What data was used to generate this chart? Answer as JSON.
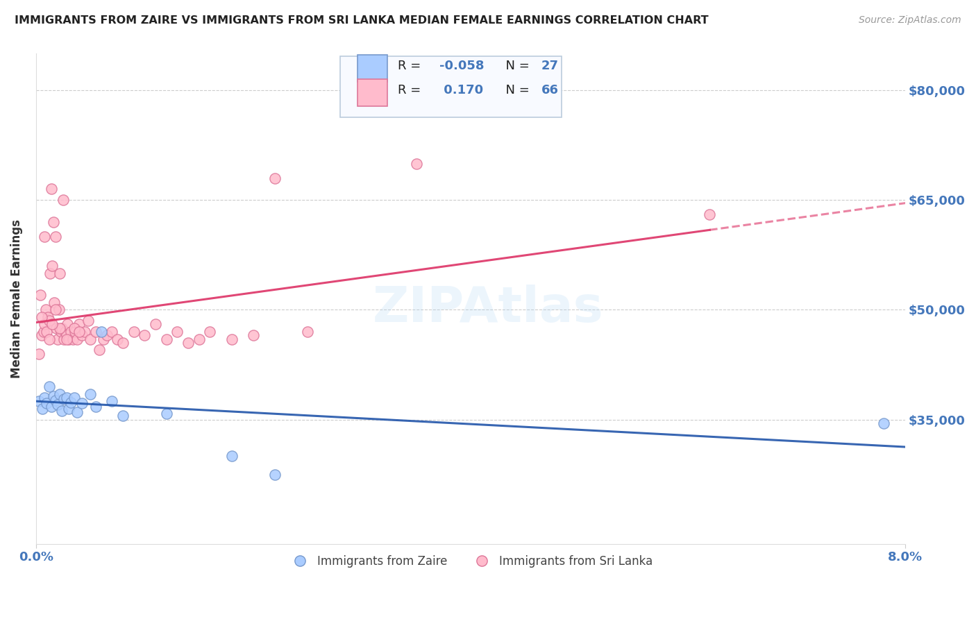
{
  "title": "IMMIGRANTS FROM ZAIRE VS IMMIGRANTS FROM SRI LANKA MEDIAN FEMALE EARNINGS CORRELATION CHART",
  "source": "Source: ZipAtlas.com",
  "ylabel": "Median Female Earnings",
  "watermark": "ZIPAtlas",
  "xmin": 0.0,
  "xmax": 8.0,
  "ymin": 18000,
  "ymax": 85000,
  "yticks": [
    35000,
    50000,
    65000,
    80000
  ],
  "ytick_labels": [
    "$35,000",
    "$50,000",
    "$65,000",
    "$80,000"
  ],
  "background_color": "#ffffff",
  "grid_color": "#cccccc",
  "title_color": "#222222",
  "source_color": "#999999",
  "ylabel_color": "#333333",
  "xtick_color": "#4477bb",
  "ytick_color": "#4477bb",
  "zaire_color": "#aaccff",
  "zaire_edge": "#7799cc",
  "srilanka_color": "#ffbbcc",
  "srilanka_edge": "#dd7799",
  "zaire_line_color": "#2255aa",
  "srilanka_line_color": "#dd3366",
  "R_zaire": -0.058,
  "N_zaire": 27,
  "R_srilanka": 0.17,
  "N_srilanka": 66,
  "legend_box_color": "#f8faff",
  "legend_border_color": "#bbccdd",
  "legend_text_color": "#222222",
  "legend_value_color": "#4477bb",
  "dot_size": 120,
  "zaire_x": [
    0.03,
    0.06,
    0.08,
    0.1,
    0.12,
    0.14,
    0.16,
    0.18,
    0.2,
    0.22,
    0.24,
    0.26,
    0.28,
    0.3,
    0.32,
    0.35,
    0.38,
    0.42,
    0.5,
    0.55,
    0.6,
    0.7,
    0.8,
    1.2,
    1.8,
    2.2,
    7.8
  ],
  "zaire_y": [
    37500,
    36500,
    38000,
    37200,
    39500,
    36800,
    38200,
    37600,
    37000,
    38500,
    36200,
    37800,
    38000,
    36500,
    37300,
    38000,
    36000,
    37200,
    38500,
    36800,
    47000,
    37500,
    35500,
    35800,
    30000,
    27500,
    34500
  ],
  "srilanka_x": [
    0.03,
    0.04,
    0.05,
    0.07,
    0.08,
    0.09,
    0.1,
    0.11,
    0.12,
    0.13,
    0.14,
    0.15,
    0.16,
    0.17,
    0.18,
    0.19,
    0.2,
    0.21,
    0.22,
    0.23,
    0.24,
    0.25,
    0.26,
    0.27,
    0.28,
    0.29,
    0.3,
    0.32,
    0.34,
    0.36,
    0.38,
    0.4,
    0.42,
    0.45,
    0.48,
    0.5,
    0.55,
    0.58,
    0.62,
    0.65,
    0.7,
    0.75,
    0.8,
    0.9,
    1.0,
    1.1,
    1.2,
    1.3,
    1.4,
    1.5,
    1.6,
    1.8,
    2.0,
    2.2,
    2.5,
    0.05,
    0.22,
    0.08,
    0.15,
    0.28,
    0.35,
    0.12,
    0.18,
    0.4,
    3.5,
    6.2
  ],
  "srilanka_y": [
    44000,
    52000,
    46500,
    47000,
    48000,
    50000,
    47000,
    49000,
    48500,
    55000,
    66500,
    56000,
    62000,
    51000,
    60000,
    47500,
    46000,
    50000,
    55000,
    47000,
    47500,
    65000,
    46000,
    47000,
    46500,
    48000,
    46000,
    47000,
    46000,
    47000,
    46000,
    48000,
    46500,
    47000,
    48500,
    46000,
    47000,
    44500,
    46000,
    46500,
    47000,
    46000,
    45500,
    47000,
    46500,
    48000,
    46000,
    47000,
    45500,
    46000,
    47000,
    46000,
    46500,
    68000,
    47000,
    49000,
    47500,
    60000,
    48000,
    46000,
    47500,
    46000,
    50000,
    47000,
    70000,
    63000
  ]
}
